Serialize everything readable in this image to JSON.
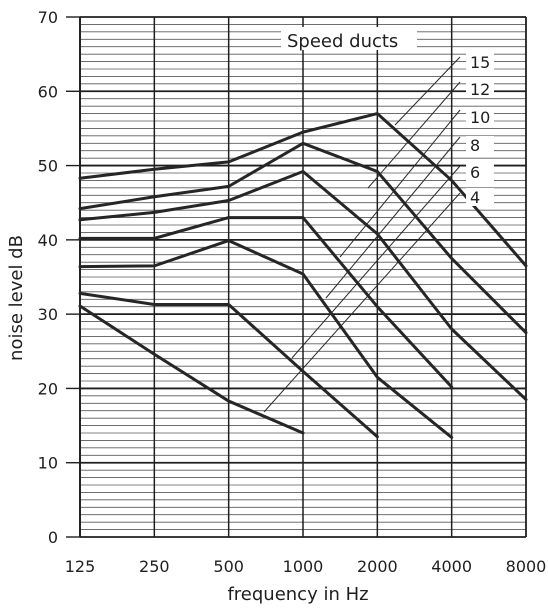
{
  "chart_data": {
    "type": "line",
    "title": "",
    "xlabel": "frequency in Hz",
    "ylabel": "noise level  dB",
    "x_scale": "log",
    "categories": [
      "125",
      "250",
      "500",
      "1000",
      "2000",
      "4000",
      "8000"
    ],
    "ylim": [
      0,
      70
    ],
    "y_ticks": [
      "0",
      "10",
      "20",
      "30",
      "40",
      "50",
      "60",
      "70"
    ],
    "grid": {
      "major_vertical": true,
      "horizontal_minor_step": 1,
      "horizontal_major_step": 10
    },
    "legend": {
      "title": "Speed ducts",
      "placement": "top-right",
      "labels": [
        "15",
        "12",
        "10",
        "8",
        "6",
        "4"
      ]
    },
    "series": [
      {
        "name": "15",
        "values": [
          48.3,
          49.5,
          50.5,
          54.5,
          57.0,
          48.0,
          36.5
        ]
      },
      {
        "name": "12",
        "values": [
          44.2,
          45.8,
          47.2,
          53.0,
          49.2,
          37.5,
          27.5
        ]
      },
      {
        "name": "10",
        "values": [
          42.7,
          43.7,
          45.3,
          49.2,
          40.8,
          28.0,
          18.5
        ]
      },
      {
        "name": "8",
        "values": [
          40.2,
          40.2,
          43.0,
          43.0,
          31.0,
          20.2,
          null
        ]
      },
      {
        "name": "6",
        "values": [
          36.4,
          36.5,
          39.9,
          35.4,
          21.5,
          13.4,
          null
        ]
      },
      {
        "name": "4",
        "values": [
          32.8,
          31.3,
          31.3,
          22.3,
          13.5,
          null,
          null
        ]
      },
      {
        "name": "",
        "values": [
          31.1,
          24.6,
          18.3,
          14.0,
          null,
          null,
          null
        ]
      }
    ]
  }
}
